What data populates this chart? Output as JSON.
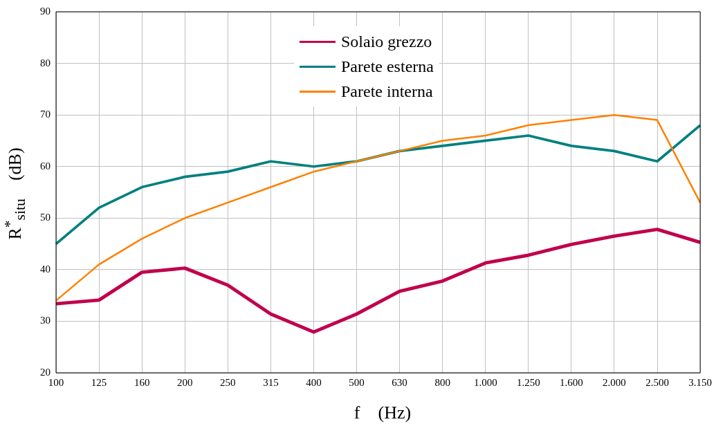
{
  "chart_data": {
    "type": "line",
    "xlabel": "f    (Hz)",
    "ylabel": "R$^{*}$$_{situ}$    (dB)",
    "categories": [
      "100",
      "125",
      "160",
      "200",
      "250",
      "315",
      "400",
      "500",
      "630",
      "800",
      "1.000",
      "1.250",
      "1.600",
      "2.000",
      "2.500",
      "3.150"
    ],
    "series": [
      {
        "name": "Solaio grezzo",
        "color": "#c0004d",
        "values": [
          33.4,
          34.1,
          39.5,
          40.3,
          37.0,
          31.4,
          27.9,
          31.4,
          35.8,
          37.8,
          41.3,
          42.8,
          44.9,
          46.5,
          47.8,
          45.3
        ]
      },
      {
        "name": "Parete esterna",
        "color": "#00807f",
        "values": [
          45,
          52,
          56,
          58,
          59,
          61,
          60,
          61,
          63,
          64,
          65,
          66,
          64,
          63,
          61,
          68
        ]
      },
      {
        "name": "Parete interna",
        "color": "#ff8000",
        "values": [
          34,
          41,
          46,
          50,
          53,
          56,
          59,
          61,
          63,
          65,
          66,
          68,
          69,
          70,
          69,
          53
        ]
      }
    ],
    "ylim": [
      20,
      90
    ],
    "yticks": [
      20,
      30,
      40,
      50,
      60,
      70,
      80,
      90
    ],
    "grid": true,
    "legend": "top",
    "marker": "none",
    "line_style": "solid"
  }
}
